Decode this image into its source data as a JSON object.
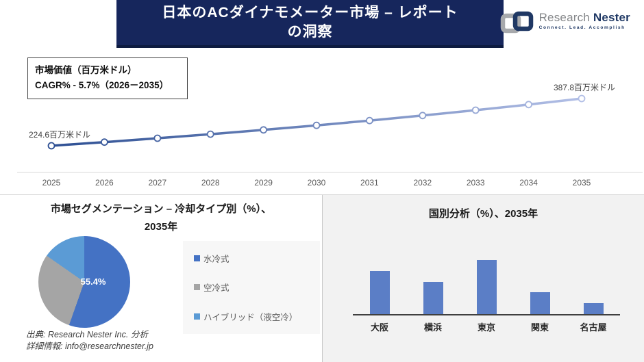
{
  "header": {
    "title_line1": "日本のACダイナモメーター市場 – レポート",
    "title_line2": "の洞察"
  },
  "logo": {
    "name_part1": "Research",
    "name_part2": "Nester",
    "tagline": "Connect. Lead. Accomplish",
    "gray": "#a7a9ac",
    "navy": "#1f3864"
  },
  "info_box": {
    "line1": "市場価値（百万米ドル）",
    "line2": "CAGR% - 5.7%（2026－2035）"
  },
  "pie_panel": {
    "title_line1": "市場セグメンテーション – 冷却タイプ別（%）、",
    "title_line2": "2035年"
  },
  "footer": {
    "source": "出典: Research Nester Inc. 分析",
    "contact": "詳細情報: info@researchnester.jp"
  },
  "colors": {
    "header_navy": "#16265c",
    "line_start": "#2d4f93",
    "line_end": "#b2bfe6",
    "axis_light": "#d9d9d9",
    "axis_dark": "#3f3f3f",
    "bar_blue": "#5b7ec6",
    "panel_gray": "#f2f2f2"
  },
  "chart_data": [
    {
      "type": "line",
      "title": "市場価値（百万米ドル）",
      "subtitle": "CAGR% - 5.7%（2026－2035）",
      "x": [
        2025,
        2026,
        2027,
        2028,
        2029,
        2030,
        2031,
        2032,
        2033,
        2034,
        2035
      ],
      "values": [
        224.6,
        237.2,
        250.5,
        264.6,
        279.4,
        295.1,
        311.6,
        329.1,
        347.5,
        367.0,
        387.8
      ],
      "start_label": "224.6百万米ドル",
      "end_label": "387.8百万米ドル",
      "ylabel": "百万米ドル",
      "ylim": [
        200,
        400
      ],
      "grid": false,
      "marker": "white-circle",
      "legend_position": "none"
    },
    {
      "type": "pie",
      "title": "市場セグメンテーション – 冷却タイプ別（%）、2035年",
      "labels": [
        "水冷式",
        "空冷式",
        "ハイブリッド（液空冷）"
      ],
      "values": [
        55.4,
        29.3,
        15.3
      ],
      "colors": [
        "#4472c4",
        "#a5a5a5",
        "#5b9bd5"
      ],
      "shown_label": "55.4%",
      "legend_position": "right"
    },
    {
      "type": "bar",
      "title": "国別分析（%）、2035年",
      "categories": [
        "大阪",
        "横浜",
        "東京",
        "関東",
        "名古屋"
      ],
      "values": [
        24,
        18,
        30,
        12,
        6
      ],
      "bar_color": "#5b7ec6",
      "ylim": [
        0,
        33
      ],
      "grid": false
    }
  ]
}
